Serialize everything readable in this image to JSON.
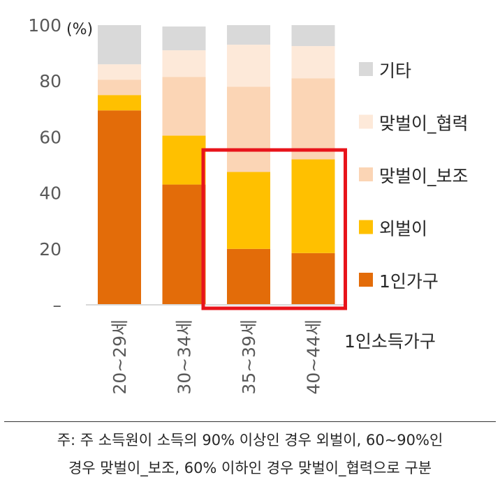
{
  "chart_data": {
    "type": "bar",
    "stacked": true,
    "categories": [
      "20~29세",
      "30~34세",
      "35~39세",
      "40~44세"
    ],
    "xlabel": "1인소득가구",
    "ylabel": "(%)",
    "ylim": [
      0,
      100
    ],
    "yticks": [
      "–",
      "20",
      "40",
      "60",
      "80",
      "100"
    ],
    "grid": false,
    "legend_position": "right",
    "series": [
      {
        "name": "1인가구",
        "color": "#E36C09",
        "values": [
          69.5,
          43,
          20,
          18.5
        ]
      },
      {
        "name": "외벌이",
        "color": "#FFC000",
        "values": [
          5.5,
          17.5,
          27.5,
          33.5
        ]
      },
      {
        "name": "맞벌이_보조",
        "color": "#FBD5B5",
        "values": [
          5.5,
          21,
          30.5,
          29
        ]
      },
      {
        "name": "맞벌이_협력",
        "color": "#FDE9D9",
        "values": [
          5.5,
          9.5,
          15,
          11.5
        ]
      },
      {
        "name": "기타",
        "color": "#D9D9D9",
        "values": [
          14,
          8.5,
          7,
          7.5
        ]
      }
    ],
    "highlight": {
      "categories": [
        "35~39세",
        "40~44세"
      ],
      "color": "#E8141B"
    }
  },
  "footnote": {
    "line1": "주: 주 소득원이 소득의 90% 이상인 경우 외벌이, 60~90%인",
    "line2": "경우 맞벌이_보조, 60% 이하인 경우 맞벌이_협력으로 구분"
  }
}
